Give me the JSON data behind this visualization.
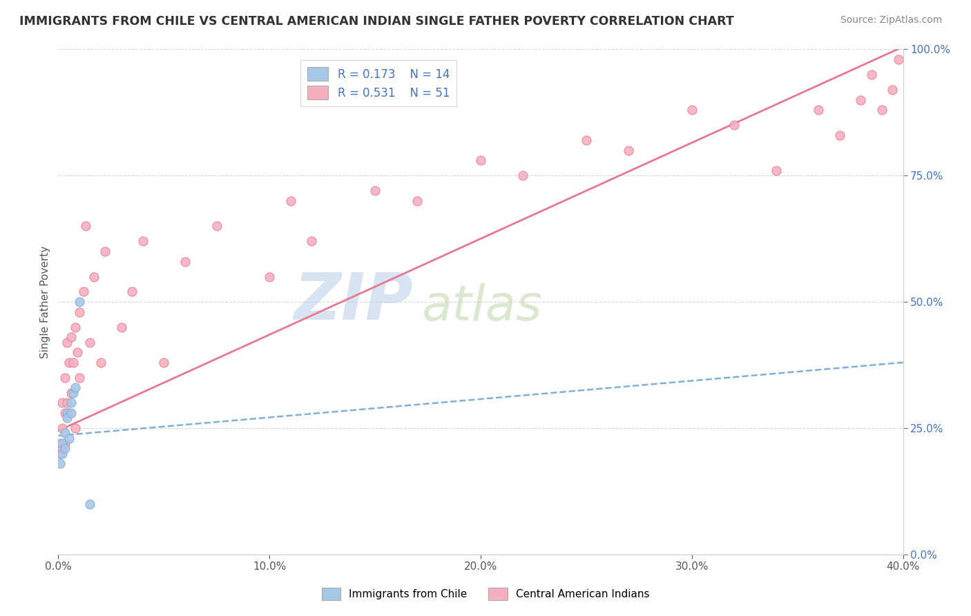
{
  "title": "IMMIGRANTS FROM CHILE VS CENTRAL AMERICAN INDIAN SINGLE FATHER POVERTY CORRELATION CHART",
  "source": "Source: ZipAtlas.com",
  "ylabel": "Single Father Poverty",
  "xmin": 0.0,
  "xmax": 0.4,
  "ymin": 0.0,
  "ymax": 1.0,
  "right_yticks": [
    0.0,
    0.25,
    0.5,
    0.75,
    1.0
  ],
  "right_yticklabels": [
    "0.0%",
    "25.0%",
    "50.0%",
    "75.0%",
    "100.0%"
  ],
  "xticks": [
    0.0,
    0.1,
    0.2,
    0.3,
    0.4
  ],
  "xticklabels": [
    "0.0%",
    "10.0%",
    "20.0%",
    "30.0%",
    "40.0%"
  ],
  "legend_r1": "R = 0.173",
  "legend_n1": "N = 14",
  "legend_r2": "R = 0.531",
  "legend_n2": "N = 51",
  "color_chile": "#a8c8e8",
  "color_central": "#f5b0c0",
  "color_chile_edge": "#80aad0",
  "color_central_edge": "#e87890",
  "trend_chile_color": "#80b0d8",
  "trend_central_color": "#e87890",
  "watermark_zip": "ZIP",
  "watermark_atlas": "atlas",
  "watermark_color_zip": "#b8cfe0",
  "watermark_color_atlas": "#c8d8b0",
  "background_color": "#ffffff",
  "grid_color": "#d8d8d8",
  "chile_x": [
    0.001,
    0.002,
    0.002,
    0.003,
    0.003,
    0.004,
    0.004,
    0.005,
    0.006,
    0.006,
    0.007,
    0.008,
    0.01,
    0.015
  ],
  "chile_y": [
    0.18,
    0.22,
    0.2,
    0.24,
    0.21,
    0.28,
    0.27,
    0.23,
    0.3,
    0.28,
    0.32,
    0.33,
    0.5,
    0.1
  ],
  "central_x": [
    0.001,
    0.001,
    0.002,
    0.002,
    0.002,
    0.003,
    0.003,
    0.003,
    0.004,
    0.004,
    0.005,
    0.005,
    0.006,
    0.006,
    0.007,
    0.008,
    0.008,
    0.009,
    0.01,
    0.01,
    0.012,
    0.013,
    0.015,
    0.017,
    0.02,
    0.022,
    0.03,
    0.035,
    0.04,
    0.05,
    0.06,
    0.075,
    0.1,
    0.11,
    0.12,
    0.15,
    0.17,
    0.2,
    0.22,
    0.25,
    0.27,
    0.3,
    0.32,
    0.34,
    0.36,
    0.37,
    0.38,
    0.385,
    0.39,
    0.395,
    0.398
  ],
  "central_y": [
    0.2,
    0.22,
    0.25,
    0.21,
    0.3,
    0.28,
    0.35,
    0.22,
    0.3,
    0.42,
    0.28,
    0.38,
    0.32,
    0.43,
    0.38,
    0.25,
    0.45,
    0.4,
    0.48,
    0.35,
    0.52,
    0.65,
    0.42,
    0.55,
    0.38,
    0.6,
    0.45,
    0.52,
    0.62,
    0.38,
    0.58,
    0.65,
    0.55,
    0.7,
    0.62,
    0.72,
    0.7,
    0.78,
    0.75,
    0.82,
    0.8,
    0.88,
    0.85,
    0.76,
    0.88,
    0.83,
    0.9,
    0.95,
    0.88,
    0.92,
    0.98
  ],
  "trend_chile_x0": 0.0,
  "trend_chile_x1": 0.4,
  "trend_chile_y0": 0.235,
  "trend_chile_y1": 0.38,
  "trend_central_x0": 0.0,
  "trend_central_x1": 0.4,
  "trend_central_y0": 0.245,
  "trend_central_y1": 1.005
}
